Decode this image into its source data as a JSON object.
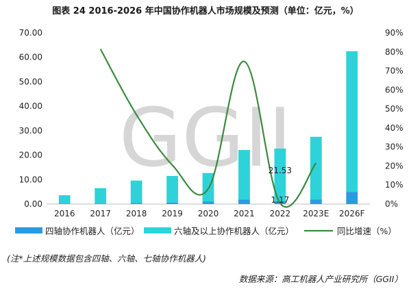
{
  "title": "图表 24  2016-2026 年中国协作机器人市场规模及预测（单位：亿元，%）",
  "note": "(注*上述规模数据包含四轴、六轴、七轴协作机器人)",
  "source": "数据来源：高工机器人产业研究所（GGII）",
  "watermark": "GGII",
  "colors": {
    "four_axis": "#2b9be0",
    "six_axis": "#2dd3d8",
    "growth": "#3a8a3e",
    "axis": "#bfbfbf",
    "text": "#222222"
  },
  "chart_data": {
    "type": "bar",
    "categories": [
      "2016",
      "2017",
      "2018",
      "2019",
      "2020",
      "2021",
      "2022",
      "2023E",
      "2026F"
    ],
    "series": [
      {
        "name": "四轴协作机器人（亿元）",
        "type": "bar",
        "axis": "left",
        "values": [
          0.1,
          0.2,
          0.4,
          0.6,
          1.0,
          1.8,
          1.17,
          1.9,
          5.0
        ]
      },
      {
        "name": "六轴及以上协作机器人（亿元）",
        "type": "bar",
        "axis": "left",
        "values": [
          3.5,
          6.3,
          9.2,
          10.9,
          11.7,
          20.3,
          21.53,
          25.6,
          57.5
        ]
      },
      {
        "name": "同比增速（%）",
        "type": "line",
        "axis": "right",
        "values": [
          null,
          81.5,
          47,
          20.5,
          8,
          75,
          0.5,
          21.5,
          null
        ]
      }
    ],
    "data_labels": [
      "21.53",
      "1.17"
    ],
    "y_left": {
      "min": 0,
      "max": 70,
      "ticks": [
        "0.00",
        "10.00",
        "20.00",
        "30.00",
        "40.00",
        "50.00",
        "60.00",
        "70.00"
      ]
    },
    "y_right": {
      "min": 0,
      "max": 90,
      "ticks": [
        "0%",
        "10%",
        "20%",
        "30%",
        "40%",
        "50%",
        "60%",
        "70%",
        "80%",
        "90%"
      ]
    },
    "legend_position": "bottom",
    "grid": false
  }
}
